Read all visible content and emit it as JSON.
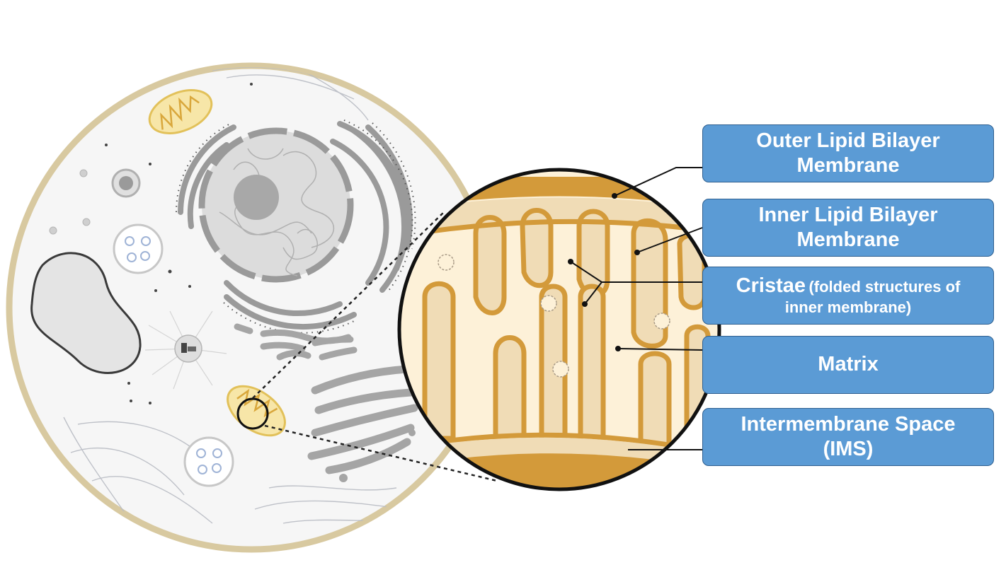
{
  "labels": {
    "outer": {
      "line1": "Outer Lipid Bilayer",
      "line2": "Membrane"
    },
    "inner": {
      "line1": "Inner Lipid Bilayer",
      "line2": "Membrane"
    },
    "cristae": {
      "title": "Cristae",
      "note_a": "(folded structures of",
      "note_b": "inner membrane)"
    },
    "matrix": {
      "title": "Matrix"
    },
    "ims": {
      "line1": "Intermembrane Space",
      "line2": "(IMS)"
    }
  },
  "colors": {
    "label_fill": "#5b9bd5",
    "label_border": "#2e5f8f",
    "membrane": "#d39a3a",
    "matrix": "#fdf1d8",
    "ims": "#f0dcb6",
    "cell_wall": "#d8c9a0",
    "cytoplasm": "#f5f5f5",
    "organelle_gray": "#a8a8a8"
  }
}
